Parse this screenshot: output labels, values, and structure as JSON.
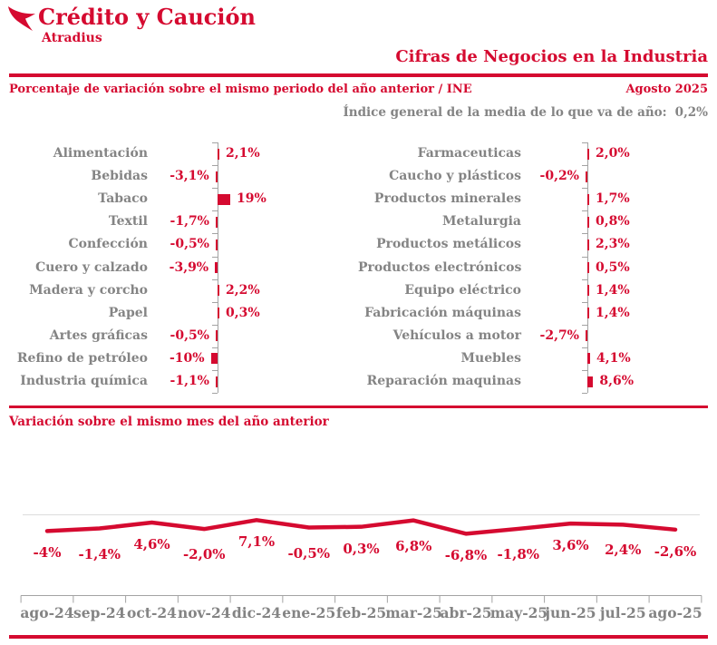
{
  "brand": {
    "name": "Crédito y Caución",
    "subname": "Atradius"
  },
  "header": {
    "title": "Cifras de Negocios en la Industria",
    "subtitle": "Porcentaje de variación sobre el mismo periodo del año anterior / INE",
    "period": "Agosto 2025",
    "index_note": "Índice general de la media de lo que va de año:",
    "index_value": "0,2%"
  },
  "section2_title": "Variación sobre el mismo mes del año anterior",
  "colors": {
    "red": "#d50a30",
    "gray": "#848484",
    "axis": "#a3a3a3",
    "gridline": "#dcdcdc"
  },
  "chart_data": [
    {
      "type": "bar",
      "panel": "left",
      "orientation": "horizontal",
      "categories": [
        "Alimentación",
        "Bebidas",
        "Tabaco",
        "Textil",
        "Confección",
        "Cuero y calzado",
        "Madera y corcho",
        "Papel",
        "Artes gráficas",
        "Refino de petróleo",
        "Industria química"
      ],
      "values": [
        2.1,
        -3.1,
        19,
        -1.7,
        -0.5,
        -3.9,
        2.2,
        0.3,
        -0.5,
        -10,
        -1.1
      ],
      "labels": [
        "2,1%",
        "-3,1%",
        "19%",
        "-1,7%",
        "-0,5%",
        "-3,9%",
        "2,2%",
        "0,3%",
        "-0,5%",
        "-10%",
        "-1,1%"
      ]
    },
    {
      "type": "bar",
      "panel": "right",
      "orientation": "horizontal",
      "categories": [
        "Farmaceuticas",
        "Caucho y plásticos",
        "Productos minerales",
        "Metalurgia",
        "Productos metálicos",
        "Productos electrónicos",
        "Equipo eléctrico",
        "Fabricación máquinas",
        "Vehículos a motor",
        "Muebles",
        "Reparación maquinas"
      ],
      "values": [
        2.0,
        -0.2,
        1.7,
        0.8,
        2.3,
        0.5,
        1.4,
        1.4,
        -2.7,
        4.1,
        8.6
      ],
      "labels": [
        "2,0%",
        "-0,2%",
        "1,7%",
        "0,8%",
        "2,3%",
        "0,5%",
        "1,4%",
        "1,4%",
        "-2,7%",
        "4,1%",
        "8,6%"
      ]
    },
    {
      "type": "line",
      "title": "Variación sobre el mismo mes del año anterior",
      "x": [
        "ago-24",
        "sep-24",
        "oct-24",
        "nov-24",
        "dic-24",
        "ene-25",
        "feb-25",
        "mar-25",
        "abr-25",
        "may-25",
        "jun-25",
        "jul-25",
        "ago-25"
      ],
      "values": [
        -4,
        -1.4,
        4.6,
        -2.0,
        7.1,
        -0.5,
        0.3,
        6.8,
        -6.8,
        -1.8,
        3.6,
        2.4,
        -2.6
      ],
      "labels": [
        "-4%",
        "-1,4%",
        "4,6%",
        "-2,0%",
        "7,1%",
        "-0,5%",
        "0,3%",
        "6,8%",
        "-6,8%",
        "-1,8%",
        "3,6%",
        "2,4%",
        "-2,6%"
      ],
      "grid": "single top gridline",
      "legend": "none"
    }
  ]
}
